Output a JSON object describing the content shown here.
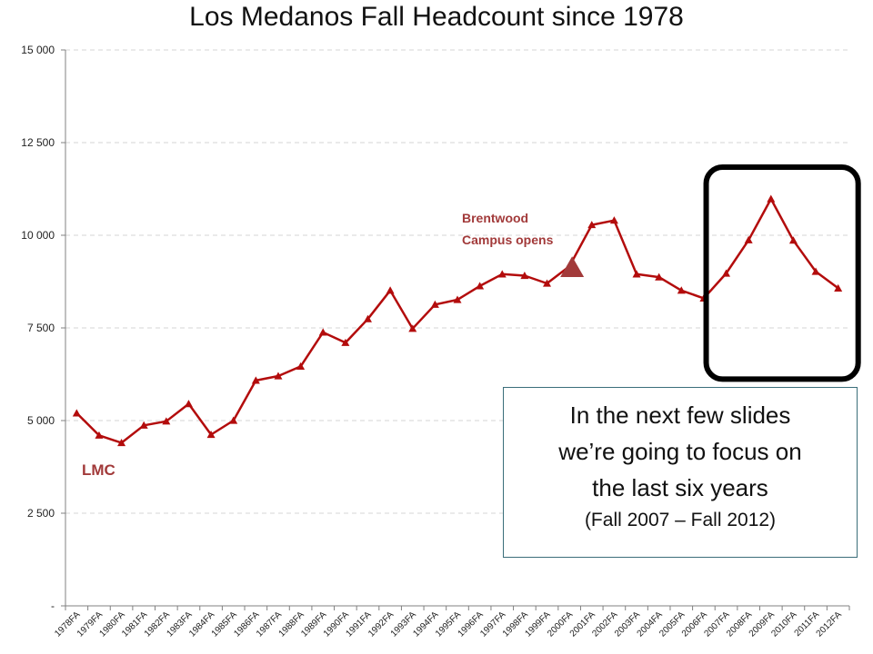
{
  "chart_data": {
    "type": "line",
    "title": "Los Medanos Fall Headcount since 1978",
    "xlabel": "",
    "ylabel": "",
    "ylim": [
      0,
      15000
    ],
    "yticks": [
      0,
      2500,
      5000,
      7500,
      10000,
      12500,
      15000
    ],
    "ytick_labels": [
      "-",
      "2 500",
      "5 000",
      "7 500",
      "10 000",
      "12 500",
      "15 000"
    ],
    "grid": true,
    "legend": "none",
    "series_color": "#b30c0c",
    "categories": [
      "1978FA",
      "1979FA",
      "1980FA",
      "1981FA",
      "1982FA",
      "1983FA",
      "1984FA",
      "1985FA",
      "1986FA",
      "1987FA",
      "1988FA",
      "1989FA",
      "1990FA",
      "1991FA",
      "1992FA",
      "1993FA",
      "1994FA",
      "1995FA",
      "1996FA",
      "1997FA",
      "1998FA",
      "1999FA",
      "2000FA",
      "2001FA",
      "2002FA",
      "2003FA",
      "2004FA",
      "2005FA",
      "2006FA",
      "2007FA",
      "2008FA",
      "2009FA",
      "2010FA",
      "2011FA",
      "2012FA"
    ],
    "series": [
      {
        "values": [
          5200,
          4600,
          4400,
          4870,
          4980,
          5450,
          4620,
          5000,
          6080,
          6200,
          6460,
          7380,
          7100,
          7740,
          8510,
          7480,
          8130,
          8260,
          8630,
          8950,
          8910,
          8700,
          9160,
          10280,
          10400,
          8950,
          8870,
          8510,
          8300,
          8970,
          9870,
          10980,
          9860,
          9020,
          8570
        ]
      }
    ],
    "annotations": {
      "brentwood_line1": "Brentwood",
      "brentwood_line2": "Campus opens",
      "brentwood_marker_color": "#a23a3a",
      "lmc": "LMC",
      "highlight_range": [
        "2007FA",
        "2012FA"
      ],
      "callout_line1": "In the next few slides",
      "callout_line2": "we’re going to focus on",
      "callout_line3": "the last six years",
      "callout_line4": "(Fall 2007 – Fall 2012)"
    }
  }
}
